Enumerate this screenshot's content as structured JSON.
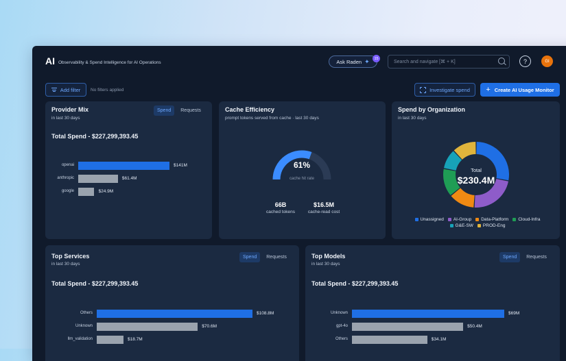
{
  "header": {
    "logo": "AI",
    "subtitle": "Observability & Spend Intelligence for AI Operations",
    "ask_label": "Ask Raden",
    "ask_badge": "15",
    "search_placeholder": "Search and navigate [⌘ + K]",
    "help_icon": "?",
    "avatar_initials": "GI"
  },
  "toolbar": {
    "add_filter_label": "Add filter",
    "no_filters_text": "No filters applied",
    "investigate_label": "Investigate spend",
    "create_label": "Create AI Usage Monitor"
  },
  "provider_mix": {
    "title": "Provider Mix",
    "subtitle": "in last 30 days",
    "tabs": [
      "Spend",
      "Requests"
    ],
    "total": "Total Spend - $227,299,393.45",
    "bars": [
      {
        "label": "openai",
        "value": 141,
        "display": "$141M",
        "color": "#1f6fe5"
      },
      {
        "label": "anthropic",
        "value": 61.4,
        "display": "$61.4M",
        "color": "#9aa3ae"
      },
      {
        "label": "google",
        "value": 24.9,
        "display": "$24.9M",
        "color": "#9aa3ae"
      }
    ]
  },
  "cache": {
    "title": "Cache Efficiency",
    "subtitle": "prompt tokens served from cache · last 30 days",
    "percent_value": 61,
    "percent_label": "61%",
    "gauge_label": "cache hit rate",
    "stat1_value": "66B",
    "stat1_label": "cached tokens",
    "stat2_value": "$16.5M",
    "stat2_label": "cache-read cost"
  },
  "org": {
    "title": "Spend by Organization",
    "subtitle": "in last 30 days",
    "center_label": "Total",
    "center_value": "$230.4M",
    "segments": [
      {
        "name": "Unassigned",
        "value": 28,
        "color": "#1f6fe5"
      },
      {
        "name": "AI-Group",
        "value": 23,
        "color": "#8e5cc9"
      },
      {
        "name": "Data-Platform",
        "value": 13,
        "color": "#f08a13"
      },
      {
        "name": "Cloud-Infra",
        "value": 14,
        "color": "#1f9d55"
      },
      {
        "name": "G&E-SW",
        "value": 10,
        "color": "#17a2b8"
      },
      {
        "name": "PROD-Eng",
        "value": 12,
        "color": "#e0b43c"
      }
    ]
  },
  "top_services": {
    "title": "Top Services",
    "subtitle": "in last 30 days",
    "tabs": [
      "Spend",
      "Requests"
    ],
    "total": "Total Spend - $227,299,393.45",
    "bars": [
      {
        "label": "Others",
        "value": 108.8,
        "display": "$108.8M",
        "color": "#1f6fe5"
      },
      {
        "label": "Unknown",
        "value": 70.6,
        "display": "$70.6M",
        "color": "#9aa3ae"
      },
      {
        "label": "llm_validation",
        "value": 18.7,
        "display": "$18.7M",
        "color": "#9aa3ae"
      }
    ]
  },
  "top_models": {
    "title": "Top Models",
    "subtitle": "in last 30 days",
    "tabs": [
      "Spend",
      "Requests"
    ],
    "total": "Total Spend - $227,299,393.45",
    "bars": [
      {
        "label": "Unknown",
        "value": 69,
        "display": "$69M",
        "color": "#1f6fe5"
      },
      {
        "label": "gpt-4o",
        "value": 50.4,
        "display": "$50.4M",
        "color": "#9aa3ae"
      },
      {
        "label": "Others",
        "value": 34.1,
        "display": "$34.1M",
        "color": "#9aa3ae"
      }
    ]
  }
}
